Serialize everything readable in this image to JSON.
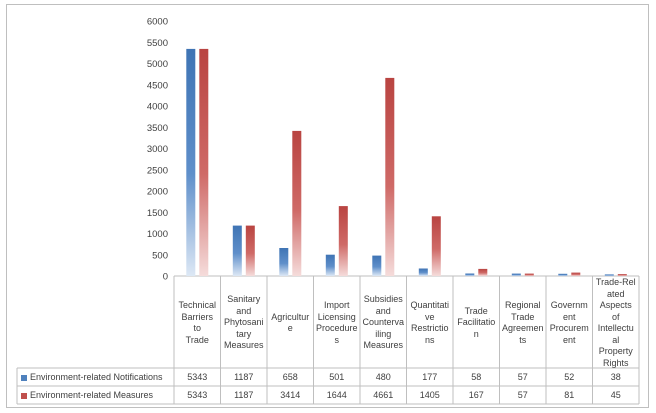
{
  "chart_data": {
    "type": "bar",
    "title": "",
    "xlabel": "",
    "ylabel": "",
    "ylim": [
      0,
      6000
    ],
    "yticks": [
      0,
      500,
      1000,
      1500,
      2000,
      2500,
      3000,
      3500,
      4000,
      4500,
      5000,
      5500,
      6000
    ],
    "grid": false,
    "legend": "data table (left)",
    "categories": [
      "Technical Barriers to Trade",
      "Sanitary and Phytosanitary Measures",
      "Agriculture",
      "Import Licensing Procedures",
      "Subsidies and Countervailing Measures",
      "Quantitative Restrictions",
      "Trade Facilitation",
      "Regional Trade Agreements",
      "Government Procurement",
      "Trade-Related Aspects of Intellectual Property Rights"
    ],
    "category_labels_wrapped": [
      "Technical Barriers to Trade",
      "Sanitary and Phytosani tary Measures",
      "Agricultur e",
      "Import Licensing Procedure s",
      "Subsidies and Counterva iling Measures",
      "Quantitati ve Restrictio ns",
      "Trade Facilitatio n",
      "Regional Trade Agreemen ts",
      "Governm ent Procurem ent",
      "Trade-Related Aspects of Intellectu al Property Rights"
    ],
    "series": [
      {
        "name": "Environment-related Notifications",
        "color": "#4f81bd",
        "values": [
          5343,
          1187,
          658,
          501,
          480,
          177,
          58,
          57,
          52,
          38
        ]
      },
      {
        "name": "Environment-related Measures",
        "color": "#c0504d",
        "values": [
          5343,
          1187,
          3414,
          1644,
          4661,
          1405,
          167,
          57,
          81,
          45
        ]
      }
    ]
  }
}
